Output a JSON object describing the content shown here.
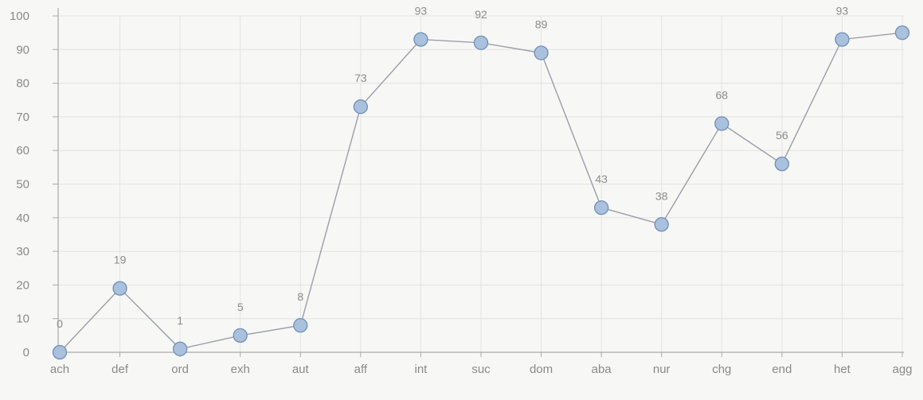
{
  "chart_data": {
    "type": "line",
    "categories": [
      "ach",
      "def",
      "ord",
      "exh",
      "aut",
      "aff",
      "int",
      "suc",
      "dom",
      "aba",
      "nur",
      "chg",
      "end",
      "het",
      "agg"
    ],
    "series": [
      {
        "values": [
          0,
          19,
          1,
          5,
          8,
          73,
          93,
          92,
          89,
          43,
          38,
          68,
          56,
          93,
          95
        ],
        "data_labels": [
          "0",
          "19",
          "1",
          "5",
          "8",
          "73",
          "93",
          "92",
          "89",
          "43",
          "38",
          "68",
          "56",
          "93",
          ""
        ]
      }
    ],
    "y_ticks": [
      "0",
      "10",
      "20",
      "30",
      "40",
      "50",
      "60",
      "70",
      "80",
      "90",
      "100"
    ],
    "ylim": [
      0,
      100
    ],
    "grid": true,
    "colors": {
      "line": "#9a9ea6",
      "marker_fill": "#a9c1dd",
      "marker_stroke": "#6f8fb8",
      "grid": "#e3e3e3",
      "axis": "#a9a9a9"
    }
  }
}
